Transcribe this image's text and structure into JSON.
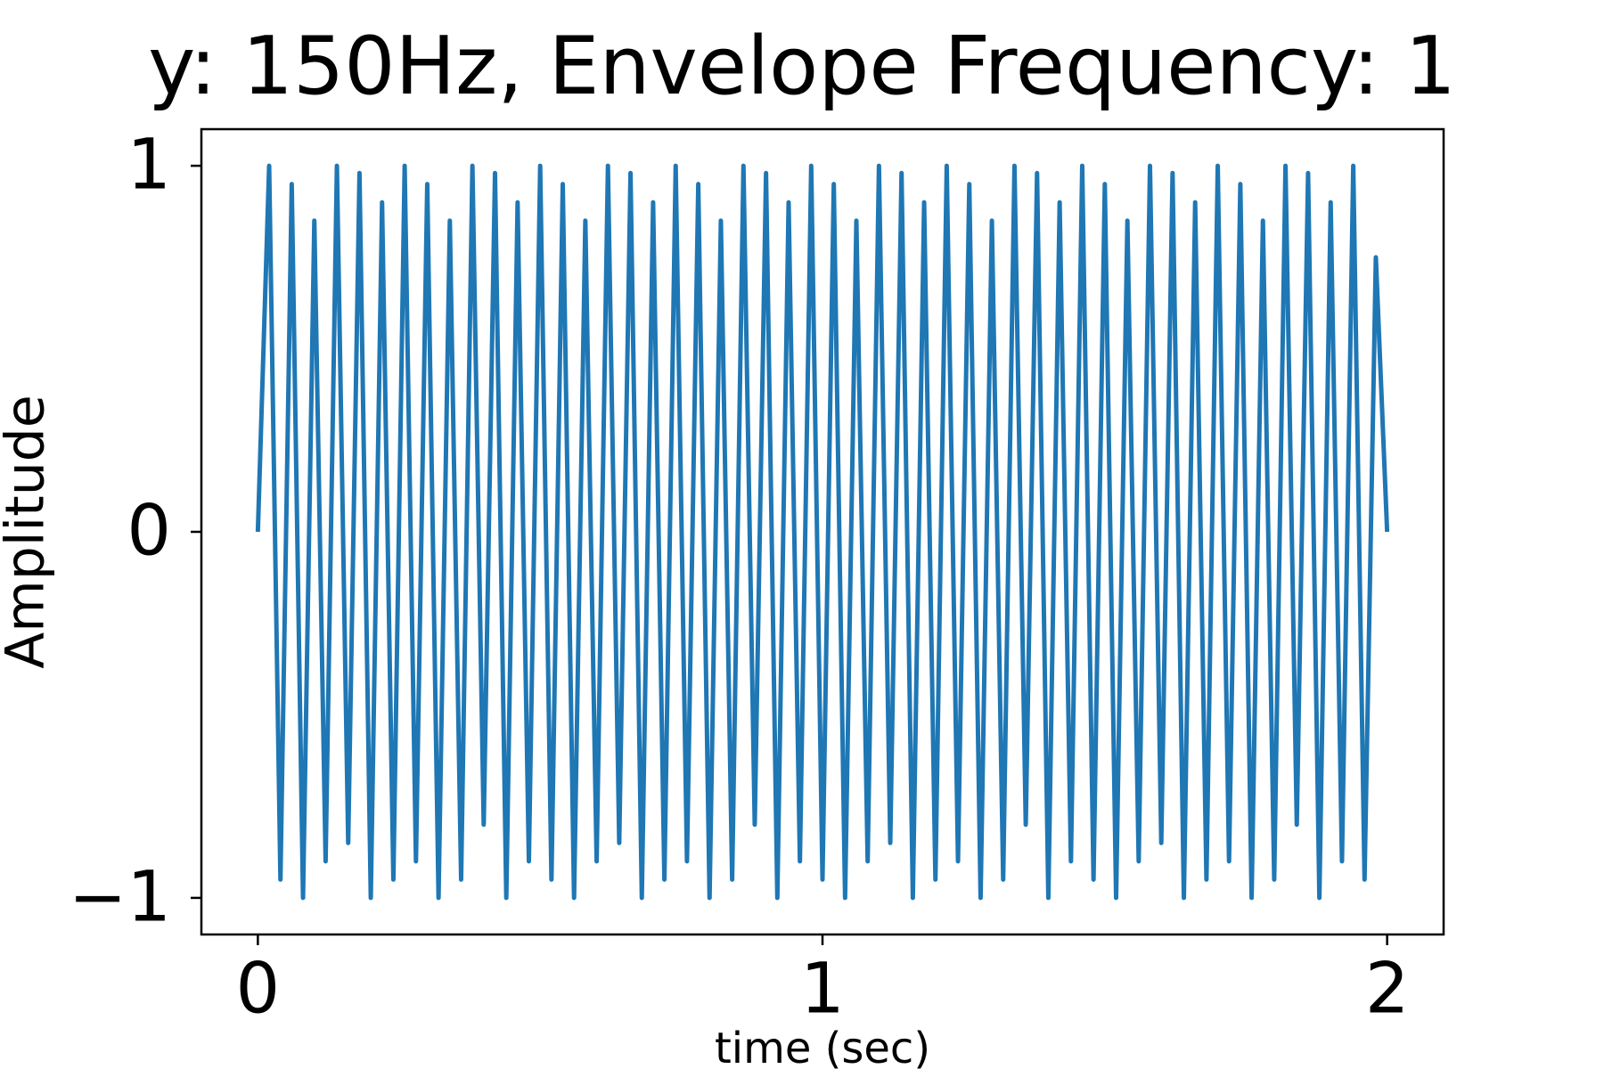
{
  "chart_data": {
    "type": "line",
    "title": "y: 150Hz, Envelope Frequency: 1",
    "x_label": "time (sec)",
    "y_label": "Amplitude",
    "xlim": [
      -0.1,
      2.1
    ],
    "ylim": [
      -1.1,
      1.1
    ],
    "xticks": [
      0,
      1,
      2
    ],
    "yticks": [
      1,
      0,
      {
        "value": -1,
        "label": "−1"
      }
    ],
    "grid": false,
    "series": [
      {
        "color": "#1f77b4",
        "x": [
          0,
          0.02,
          0.04,
          0.06,
          0.08,
          0.1,
          0.12,
          0.14,
          0.16,
          0.18,
          0.2,
          0.22,
          0.24,
          0.26,
          0.28,
          0.3,
          0.32,
          0.34,
          0.36,
          0.38,
          0.4,
          0.42,
          0.44,
          0.46,
          0.48,
          0.5,
          0.52,
          0.54,
          0.56,
          0.58,
          0.6,
          0.62,
          0.64,
          0.66,
          0.68,
          0.7,
          0.72,
          0.74,
          0.76,
          0.78,
          0.8,
          0.82,
          0.84,
          0.86,
          0.88,
          0.9,
          0.92,
          0.94,
          0.96,
          0.98,
          1,
          1.02,
          1.04,
          1.06,
          1.08,
          1.1,
          1.12,
          1.14,
          1.16,
          1.18,
          1.2,
          1.22,
          1.24,
          1.26,
          1.28,
          1.3,
          1.32,
          1.34,
          1.36,
          1.38,
          1.4,
          1.42,
          1.44,
          1.46,
          1.48,
          1.5,
          1.52,
          1.54,
          1.56,
          1.58,
          1.6,
          1.62,
          1.64,
          1.66,
          1.68,
          1.7,
          1.72,
          1.74,
          1.76,
          1.78,
          1.8,
          1.82,
          1.84,
          1.86,
          1.88,
          1.9,
          1.92,
          1.94,
          1.96,
          1.98,
          2
        ],
        "values": [
          0,
          1,
          -0.95,
          0.95,
          -1,
          0.85,
          -0.9,
          1,
          -0.85,
          0.98,
          -1,
          0.9,
          -0.95,
          1,
          -0.9,
          0.95,
          -1,
          0.85,
          -0.95,
          1,
          -0.8,
          0.98,
          -1,
          0.9,
          -0.9,
          1,
          -0.95,
          0.95,
          -1,
          0.85,
          -0.9,
          1,
          -0.85,
          0.98,
          -1,
          0.9,
          -0.95,
          1,
          -0.9,
          0.95,
          -1,
          0.85,
          -0.95,
          1,
          -0.8,
          0.98,
          -1,
          0.9,
          -0.9,
          1,
          -0.95,
          0.95,
          -1,
          0.85,
          -0.9,
          1,
          -0.85,
          0.98,
          -1,
          0.9,
          -0.95,
          1,
          -0.9,
          0.95,
          -1,
          0.85,
          -0.95,
          1,
          -0.8,
          0.98,
          -1,
          0.9,
          -0.9,
          1,
          -0.95,
          0.95,
          -1,
          0.85,
          -0.9,
          1,
          -0.85,
          0.98,
          -1,
          0.9,
          -0.95,
          1,
          -0.9,
          0.95,
          -1,
          0.85,
          -0.95,
          1,
          -0.8,
          0.98,
          -1,
          0.9,
          -0.9,
          1,
          -0.95,
          0.75,
          0
        ]
      }
    ]
  }
}
